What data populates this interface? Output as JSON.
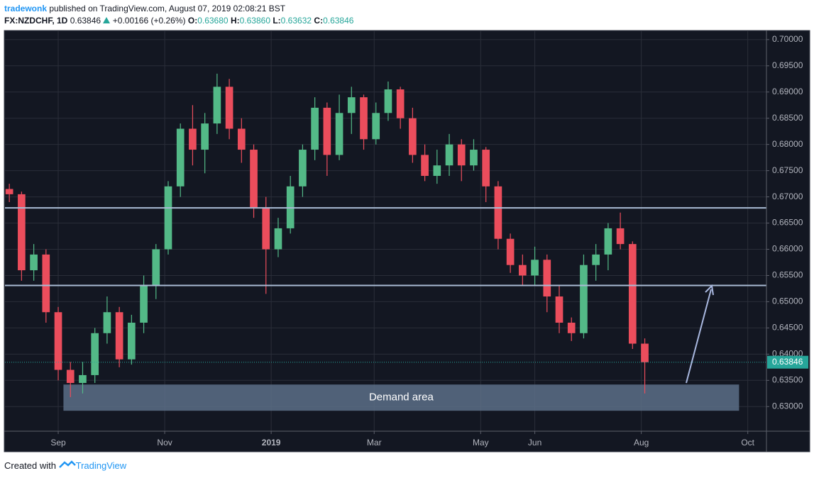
{
  "header": {
    "author": "tradewonk",
    "published": "published on TradingView.com, August 07, 2019 02:08:21 BST",
    "symbol": "FX:NZDCHF, 1D",
    "price": "0.63846",
    "change": "+0.00166 (+0.26%)",
    "open_label": "O:",
    "open": "0.63680",
    "high_label": "H:",
    "high": "0.63860",
    "low_label": "L:",
    "low": "0.63632",
    "close_label": "C:",
    "close": "0.63846"
  },
  "footer": {
    "text": "Created with",
    "brand": "TradingView"
  },
  "chart_data": {
    "type": "candlestick",
    "up_color": "#53b987",
    "down_color": "#eb4d5c",
    "xlim": [
      -30.5,
      405.7
    ],
    "ylim": [
      0.6253,
      0.7016
    ],
    "xticks": [
      {
        "value": 0,
        "label": "Sep"
      },
      {
        "value": 61,
        "label": "Nov"
      },
      {
        "value": 122,
        "label": "2019"
      },
      {
        "value": 181,
        "label": "Mar"
      },
      {
        "value": 242,
        "label": "May"
      },
      {
        "value": 273,
        "label": "Jun"
      },
      {
        "value": 334,
        "label": "Aug"
      },
      {
        "value": 395,
        "label": "Oct"
      }
    ],
    "yticks": [
      {
        "value": 0.63,
        "label": "0.63000"
      },
      {
        "value": 0.635,
        "label": "0.63500"
      },
      {
        "value": 0.64,
        "label": "0.64000"
      },
      {
        "value": 0.645,
        "label": "0.64500"
      },
      {
        "value": 0.65,
        "label": "0.65000"
      },
      {
        "value": 0.655,
        "label": "0.65500"
      },
      {
        "value": 0.66,
        "label": "0.66000"
      },
      {
        "value": 0.665,
        "label": "0.66500"
      },
      {
        "value": 0.67,
        "label": "0.67000"
      },
      {
        "value": 0.675,
        "label": "0.67500"
      },
      {
        "value": 0.68,
        "label": "0.68000"
      },
      {
        "value": 0.685,
        "label": "0.68500"
      },
      {
        "value": 0.69,
        "label": "0.69000"
      },
      {
        "value": 0.695,
        "label": "0.69500"
      },
      {
        "value": 0.7,
        "label": "0.70000"
      }
    ],
    "grid": true,
    "x": [
      -28,
      -21,
      -14,
      -7,
      0,
      7,
      14,
      21,
      28,
      35,
      42,
      49,
      56,
      63,
      70,
      77,
      84,
      91,
      98,
      105,
      112,
      119,
      126,
      133,
      140,
      147,
      154,
      161,
      168,
      175,
      182,
      189,
      196,
      203,
      210,
      217,
      224,
      231,
      238,
      245,
      252,
      259,
      266,
      273,
      280,
      287,
      294,
      301,
      308,
      315,
      322,
      329,
      336
    ],
    "open": [
      0.6715,
      0.6705,
      0.656,
      0.659,
      0.648,
      0.637,
      0.6345,
      0.636,
      0.644,
      0.648,
      0.639,
      0.646,
      0.653,
      0.66,
      0.672,
      0.683,
      0.679,
      0.684,
      0.691,
      0.683,
      0.679,
      0.668,
      0.66,
      0.664,
      0.672,
      0.679,
      0.687,
      0.678,
      0.686,
      0.689,
      0.681,
      0.686,
      0.6905,
      0.685,
      0.678,
      0.674,
      0.676,
      0.68,
      0.676,
      0.679,
      0.672,
      0.662,
      0.657,
      0.655,
      0.658,
      0.651,
      0.646,
      0.644,
      0.657,
      0.659,
      0.664,
      0.661,
      0.642
    ],
    "high": [
      0.6725,
      0.671,
      0.661,
      0.66,
      0.649,
      0.6385,
      0.6385,
      0.645,
      0.651,
      0.649,
      0.6475,
      0.655,
      0.661,
      0.673,
      0.684,
      0.6875,
      0.686,
      0.6935,
      0.6925,
      0.685,
      0.68,
      0.67,
      0.666,
      0.674,
      0.68,
      0.689,
      0.688,
      0.6895,
      0.691,
      0.6895,
      0.688,
      0.692,
      0.691,
      0.687,
      0.68,
      0.679,
      0.682,
      0.681,
      0.681,
      0.6795,
      0.673,
      0.663,
      0.659,
      0.6605,
      0.659,
      0.653,
      0.647,
      0.659,
      0.661,
      0.665,
      0.667,
      0.6615,
      0.643
    ],
    "low": [
      0.669,
      0.654,
      0.654,
      0.646,
      0.635,
      0.6318,
      0.6325,
      0.6345,
      0.642,
      0.6375,
      0.638,
      0.644,
      0.6505,
      0.659,
      0.67,
      0.676,
      0.6745,
      0.682,
      0.681,
      0.6765,
      0.666,
      0.6515,
      0.6585,
      0.663,
      0.67,
      0.677,
      0.674,
      0.677,
      0.682,
      0.679,
      0.68,
      0.6845,
      0.683,
      0.6765,
      0.673,
      0.6725,
      0.674,
      0.673,
      0.675,
      0.669,
      0.66,
      0.6555,
      0.653,
      0.653,
      0.648,
      0.644,
      0.6425,
      0.643,
      0.654,
      0.656,
      0.66,
      0.641,
      0.6325
    ],
    "close": [
      0.6705,
      0.656,
      0.659,
      0.648,
      0.637,
      0.6345,
      0.636,
      0.644,
      0.648,
      0.639,
      0.646,
      0.653,
      0.66,
      0.672,
      0.683,
      0.679,
      0.684,
      0.691,
      0.683,
      0.679,
      0.668,
      0.66,
      0.664,
      0.672,
      0.679,
      0.687,
      0.678,
      0.686,
      0.689,
      0.681,
      0.686,
      0.6905,
      0.685,
      0.678,
      0.674,
      0.676,
      0.68,
      0.676,
      0.679,
      0.672,
      0.662,
      0.657,
      0.655,
      0.658,
      0.651,
      0.646,
      0.644,
      0.657,
      0.659,
      0.664,
      0.661,
      0.642,
      0.63846
    ],
    "levels": [
      0.6679,
      0.6531
    ],
    "last_price": 0.63846,
    "zone": {
      "label": "Demand area",
      "low": 0.6292,
      "high": 0.6342,
      "x": [
        3,
        390
      ]
    }
  }
}
